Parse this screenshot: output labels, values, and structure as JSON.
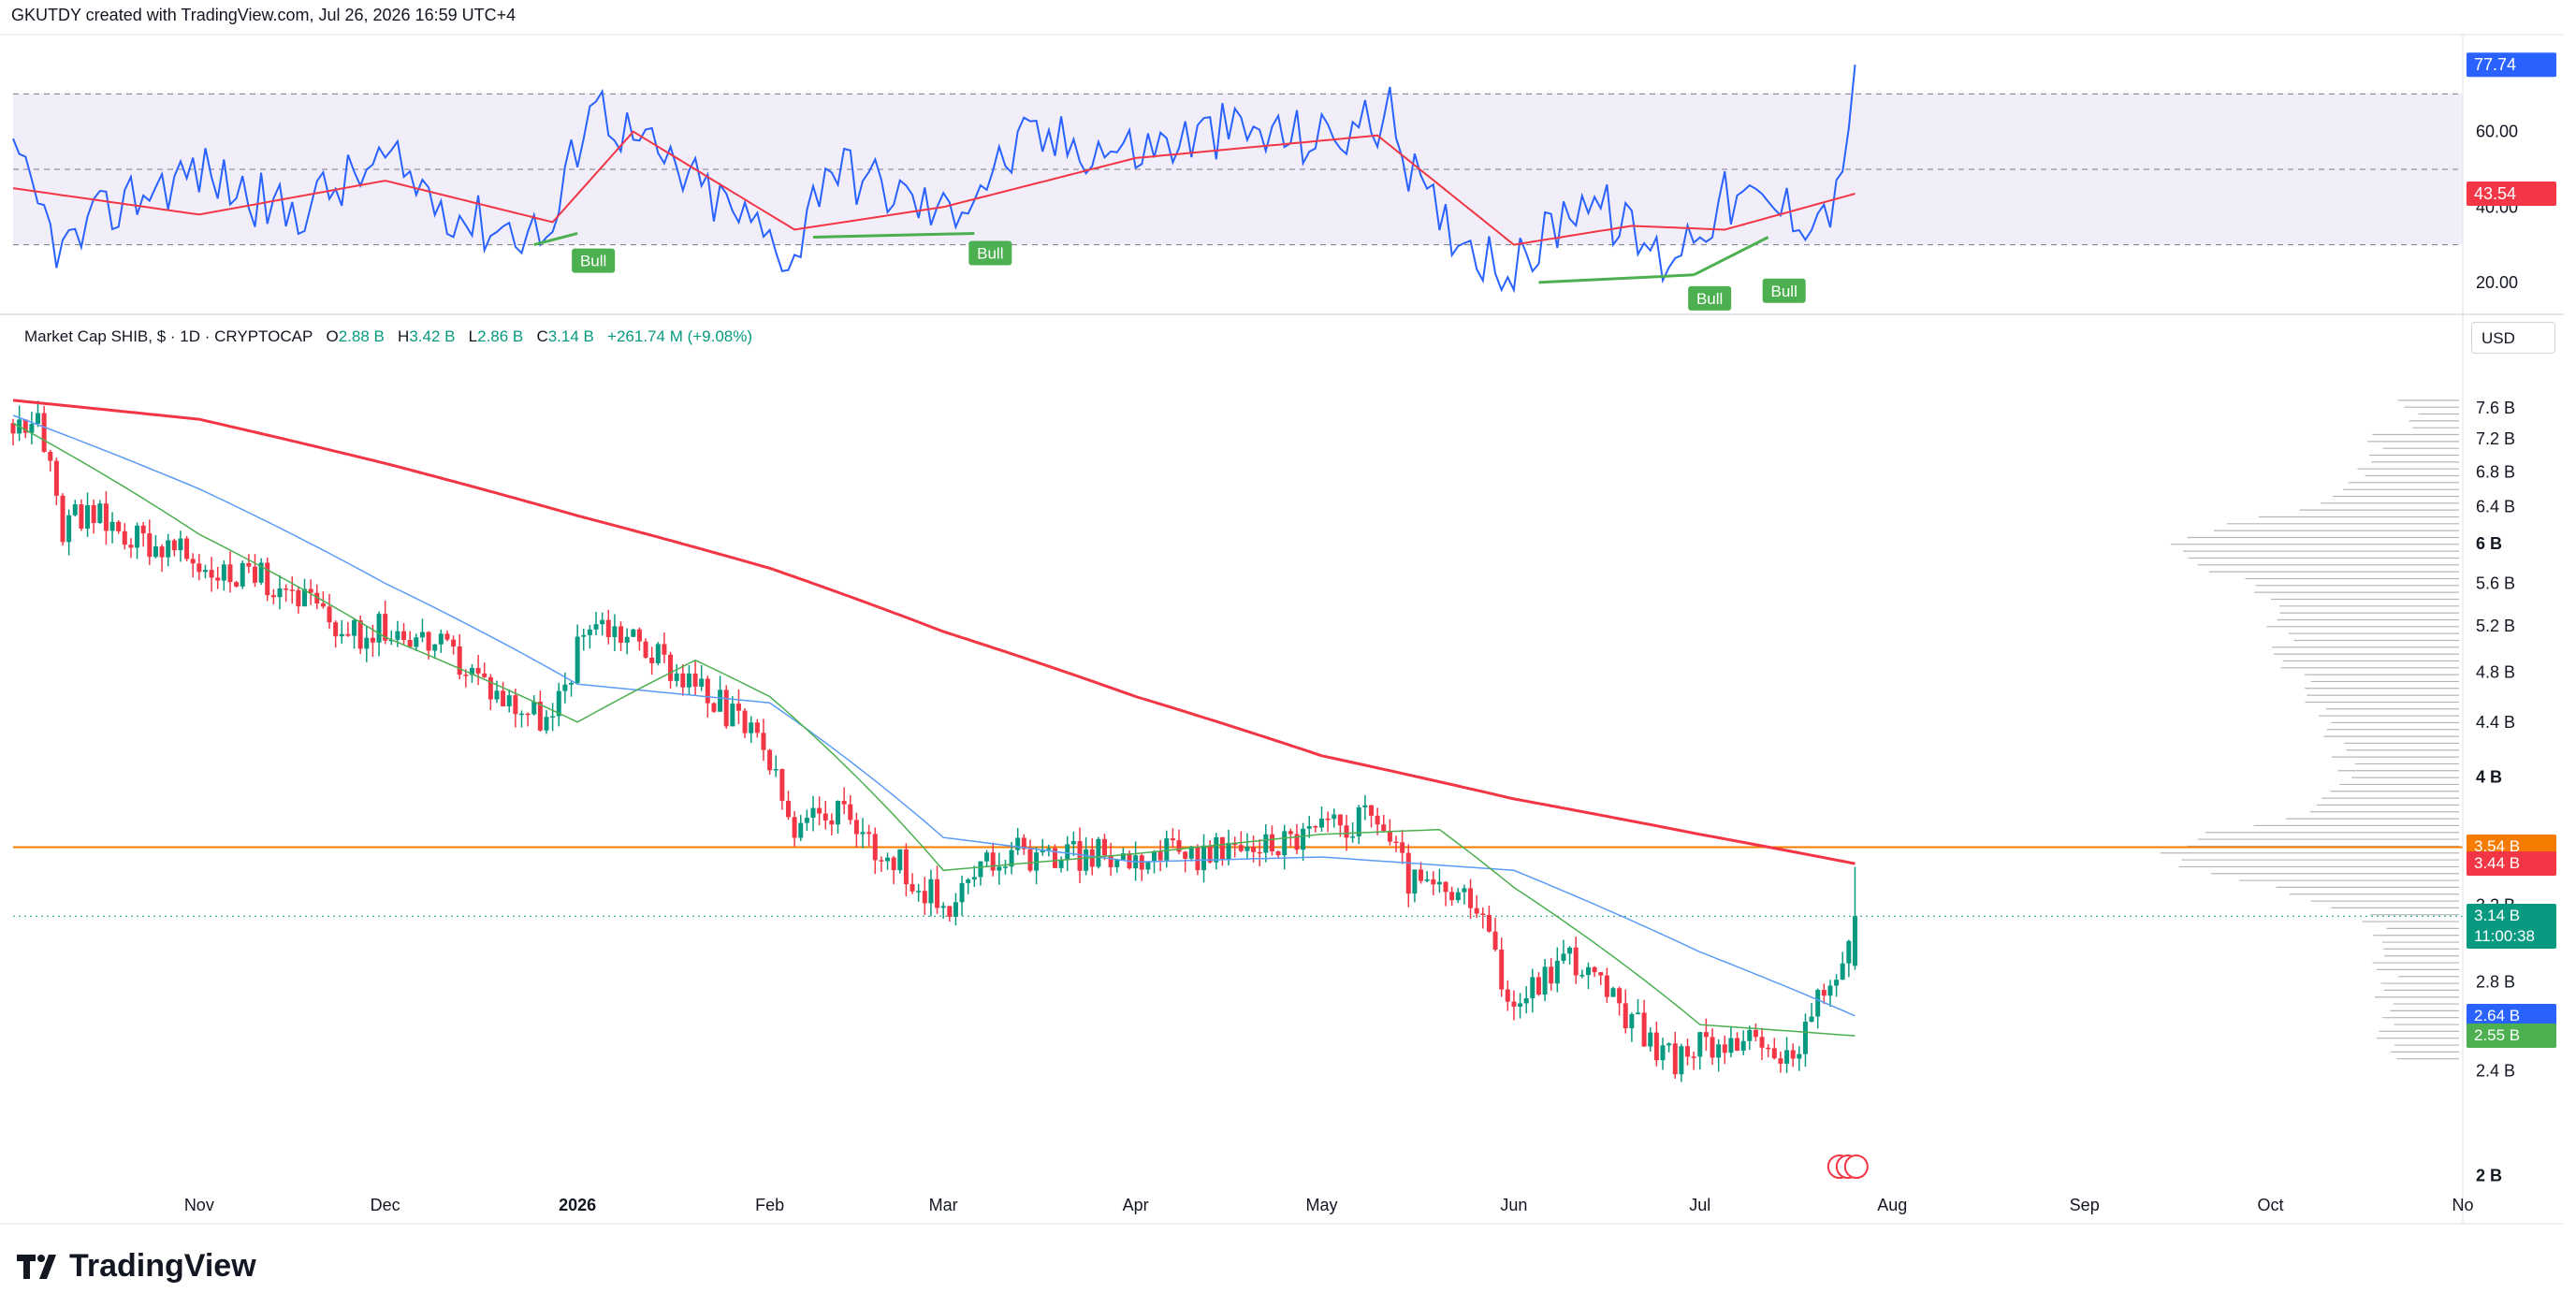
{
  "header": "GKUTDY created with TradingView.com, Jul 26, 2026 16:59 UTC+4",
  "legend": {
    "title": "Market Cap SHIB, $ · 1D · CRYPTOCAP",
    "o_key": "O",
    "o_val": "2.88 B",
    "h_key": "H",
    "h_val": "3.42 B",
    "l_key": "L",
    "l_val": "2.86 B",
    "c_key": "C",
    "c_val": "3.14 B",
    "change": "+261.74 M (+9.08%)"
  },
  "currency": "USD",
  "logo_text": "TradingView",
  "colors": {
    "up": "#089981",
    "down": "#f23645",
    "ma200": "#f23645",
    "ma50": "#5b9cf6",
    "ma20": "#4caf50",
    "rsi": "#2962ff",
    "rsi_ma": "#f23645",
    "hline": "#f57c00",
    "rsi_band": "#7e57c2"
  },
  "price_labels": [
    {
      "text": "3.54 B",
      "value": 3.54,
      "color": "#f57c00"
    },
    {
      "text": "3.44 B",
      "value": 3.44,
      "color": "#f23645"
    },
    {
      "text": "3.14 B",
      "sub": "11:00:38",
      "value": 3.14,
      "color": "#089981"
    },
    {
      "text": "2.64 B",
      "value": 2.64,
      "color": "#2962ff"
    },
    {
      "text": "2.55 B",
      "value": 2.55,
      "color": "#4caf50"
    }
  ],
  "rsi_labels": [
    {
      "text": "77.74",
      "value": 77.74,
      "color": "#2962ff"
    },
    {
      "text": "43.54",
      "value": 43.54,
      "color": "#f23645"
    }
  ],
  "chart_data": {
    "type": "candlestick",
    "title": "Market Cap SHIB, $ · 1D · CRYPTOCAP",
    "price_axis": {
      "scale": "log",
      "ticks": [
        "2 B",
        "2.4 B",
        "2.8 B",
        "3.2 B",
        "4 B",
        "4.4 B",
        "4.8 B",
        "5.2 B",
        "5.6 B",
        "6 B",
        "6.4 B",
        "6.8 B",
        "7.2 B",
        "7.6 B"
      ],
      "tick_values": [
        2,
        2.4,
        2.8,
        3.2,
        4,
        4.4,
        4.8,
        5.2,
        5.6,
        6,
        6.4,
        6.8,
        7.2,
        7.6
      ],
      "range": [
        1.95,
        7.85
      ]
    },
    "time_axis": {
      "labels": [
        "Nov",
        "Dec",
        "2026",
        "Feb",
        "Mar",
        "Apr",
        "May",
        "Jun",
        "Jul",
        "Aug",
        "Sep",
        "Oct",
        "No"
      ],
      "label_dates": [
        "2025-11-01",
        "2025-12-01",
        "2026-01-01",
        "2026-02-01",
        "2026-03-01",
        "2026-04-01",
        "2026-05-01",
        "2026-06-01",
        "2026-07-01",
        "2026-08-01",
        "2026-09-01",
        "2026-10-01",
        "2026-11-01"
      ],
      "range": [
        "2025-10-02",
        "2026-11-01"
      ]
    },
    "price_anchors": [
      {
        "date": "2025-10-02",
        "close": 7.4
      },
      {
        "date": "2025-10-06",
        "close": 7.6
      },
      {
        "date": "2025-10-10",
        "close": 6.2
      },
      {
        "date": "2025-10-15",
        "close": 6.3
      },
      {
        "date": "2025-10-25",
        "close": 6.0
      },
      {
        "date": "2025-11-05",
        "close": 5.7
      },
      {
        "date": "2025-11-15",
        "close": 5.6
      },
      {
        "date": "2025-11-25",
        "close": 5.1
      },
      {
        "date": "2025-12-03",
        "close": 5.2
      },
      {
        "date": "2025-12-10",
        "close": 5.0
      },
      {
        "date": "2025-12-20",
        "close": 4.6
      },
      {
        "date": "2025-12-28",
        "close": 4.4
      },
      {
        "date": "2026-01-03",
        "close": 5.3
      },
      {
        "date": "2026-01-10",
        "close": 5.1
      },
      {
        "date": "2026-01-20",
        "close": 4.7
      },
      {
        "date": "2026-01-31",
        "close": 4.2
      },
      {
        "date": "2026-02-05",
        "close": 3.6
      },
      {
        "date": "2026-02-10",
        "close": 3.8
      },
      {
        "date": "2026-02-20",
        "close": 3.5
      },
      {
        "date": "2026-03-01",
        "close": 3.2
      },
      {
        "date": "2026-03-10",
        "close": 3.5
      },
      {
        "date": "2026-03-20",
        "close": 3.5
      },
      {
        "date": "2026-04-01",
        "close": 3.5
      },
      {
        "date": "2026-04-15",
        "close": 3.5
      },
      {
        "date": "2026-05-01",
        "close": 3.65
      },
      {
        "date": "2026-05-10",
        "close": 3.75
      },
      {
        "date": "2026-05-15",
        "close": 3.35
      },
      {
        "date": "2026-05-25",
        "close": 3.2
      },
      {
        "date": "2026-06-01",
        "close": 2.7
      },
      {
        "date": "2026-06-10",
        "close": 2.95
      },
      {
        "date": "2026-06-20",
        "close": 2.6
      },
      {
        "date": "2026-06-27",
        "close": 2.45
      },
      {
        "date": "2026-07-05",
        "close": 2.55
      },
      {
        "date": "2026-07-15",
        "close": 2.45
      },
      {
        "date": "2026-07-24",
        "close": 2.88
      },
      {
        "date": "2026-07-26",
        "close": 3.14
      }
    ],
    "last_candle": {
      "date": "2026-07-26",
      "open": 2.88,
      "high": 3.42,
      "low": 2.86,
      "close": 3.14,
      "change": "+261.74 M (+9.08%)"
    },
    "ma200": [
      {
        "date": "2025-10-02",
        "value": 7.7
      },
      {
        "date": "2025-11-01",
        "value": 7.45
      },
      {
        "date": "2025-12-01",
        "value": 6.9
      },
      {
        "date": "2026-01-01",
        "value": 6.3
      },
      {
        "date": "2026-02-01",
        "value": 5.75
      },
      {
        "date": "2026-03-01",
        "value": 5.15
      },
      {
        "date": "2026-04-01",
        "value": 4.6
      },
      {
        "date": "2026-05-01",
        "value": 4.15
      },
      {
        "date": "2026-06-01",
        "value": 3.85
      },
      {
        "date": "2026-07-01",
        "value": 3.62
      },
      {
        "date": "2026-07-26",
        "value": 3.44
      }
    ],
    "ma50": [
      {
        "date": "2025-10-02",
        "value": 7.5
      },
      {
        "date": "2025-11-01",
        "value": 6.6
      },
      {
        "date": "2025-12-01",
        "value": 5.6
      },
      {
        "date": "2026-01-01",
        "value": 4.7
      },
      {
        "date": "2026-02-01",
        "value": 4.55
      },
      {
        "date": "2026-03-01",
        "value": 3.6
      },
      {
        "date": "2026-04-01",
        "value": 3.45
      },
      {
        "date": "2026-05-01",
        "value": 3.48
      },
      {
        "date": "2026-06-01",
        "value": 3.4
      },
      {
        "date": "2026-07-01",
        "value": 2.95
      },
      {
        "date": "2026-07-26",
        "value": 2.64
      }
    ],
    "ma20": [
      {
        "date": "2025-10-02",
        "value": 7.4
      },
      {
        "date": "2025-11-01",
        "value": 6.1
      },
      {
        "date": "2025-12-01",
        "value": 5.1
      },
      {
        "date": "2026-01-01",
        "value": 4.4
      },
      {
        "date": "2026-01-20",
        "value": 4.9
      },
      {
        "date": "2026-02-01",
        "value": 4.6
      },
      {
        "date": "2026-03-01",
        "value": 3.4
      },
      {
        "date": "2026-04-01",
        "value": 3.5
      },
      {
        "date": "2026-05-01",
        "value": 3.62
      },
      {
        "date": "2026-05-20",
        "value": 3.65
      },
      {
        "date": "2026-06-01",
        "value": 3.3
      },
      {
        "date": "2026-07-01",
        "value": 2.6
      },
      {
        "date": "2026-07-26",
        "value": 2.55
      }
    ],
    "horizontal_line": 3.54,
    "current_price_line": 3.14,
    "rsi": {
      "ticks": [
        20,
        40,
        60
      ],
      "tick_labels": [
        "20.00",
        "40.00",
        "60.00"
      ],
      "band": [
        30,
        70
      ],
      "mid": 50,
      "range": [
        15,
        85
      ],
      "last": 77.74,
      "ma_last": 43.54,
      "anchors": [
        {
          "date": "2025-10-02",
          "value": 52
        },
        {
          "date": "2025-10-10",
          "value": 28
        },
        {
          "date": "2025-10-20",
          "value": 42
        },
        {
          "date": "2025-11-01",
          "value": 50
        },
        {
          "date": "2025-11-15",
          "value": 38
        },
        {
          "date": "2025-12-01",
          "value": 52
        },
        {
          "date": "2025-12-15",
          "value": 36
        },
        {
          "date": "2025-12-28",
          "value": 33
        },
        {
          "date": "2026-01-03",
          "value": 70
        },
        {
          "date": "2026-01-10",
          "value": 58
        },
        {
          "date": "2026-01-25",
          "value": 40
        },
        {
          "date": "2026-02-05",
          "value": 27
        },
        {
          "date": "2026-02-10",
          "value": 52
        },
        {
          "date": "2026-03-01",
          "value": 38
        },
        {
          "date": "2026-03-15",
          "value": 58
        },
        {
          "date": "2026-04-01",
          "value": 55
        },
        {
          "date": "2026-04-15",
          "value": 60
        },
        {
          "date": "2026-05-01",
          "value": 58
        },
        {
          "date": "2026-05-12",
          "value": 64
        },
        {
          "date": "2026-05-18",
          "value": 40
        },
        {
          "date": "2026-06-01",
          "value": 22
        },
        {
          "date": "2026-06-12",
          "value": 44
        },
        {
          "date": "2026-06-25",
          "value": 26
        },
        {
          "date": "2026-07-05",
          "value": 42
        },
        {
          "date": "2026-07-20",
          "value": 38
        },
        {
          "date": "2026-07-24",
          "value": 44
        },
        {
          "date": "2026-07-26",
          "value": 77.74
        }
      ],
      "ma_anchors": [
        {
          "date": "2025-10-02",
          "value": 45
        },
        {
          "date": "2025-11-01",
          "value": 38
        },
        {
          "date": "2025-12-01",
          "value": 47
        },
        {
          "date": "2025-12-28",
          "value": 36
        },
        {
          "date": "2026-01-10",
          "value": 60
        },
        {
          "date": "2026-02-05",
          "value": 34
        },
        {
          "date": "2026-03-01",
          "value": 40
        },
        {
          "date": "2026-04-01",
          "value": 53
        },
        {
          "date": "2026-05-10",
          "value": 59
        },
        {
          "date": "2026-06-01",
          "value": 30
        },
        {
          "date": "2026-06-20",
          "value": 35
        },
        {
          "date": "2026-07-05",
          "value": 34
        },
        {
          "date": "2026-07-26",
          "value": 43.54
        }
      ],
      "bull_divergences": [
        {
          "from": "2025-12-25",
          "to": "2026-01-01",
          "from_value": 30,
          "to_value": 33,
          "label": "Bull"
        },
        {
          "from": "2026-02-08",
          "to": "2026-03-06",
          "from_value": 32,
          "to_value": 33,
          "label": "Bull"
        },
        {
          "from": "2026-06-05",
          "to": "2026-06-30",
          "from_value": 20,
          "to_value": 22,
          "label": "Bull"
        },
        {
          "from": "2026-06-30",
          "to": "2026-07-12",
          "from_value": 22,
          "to_value": 32,
          "label": "Bull"
        }
      ]
    }
  }
}
